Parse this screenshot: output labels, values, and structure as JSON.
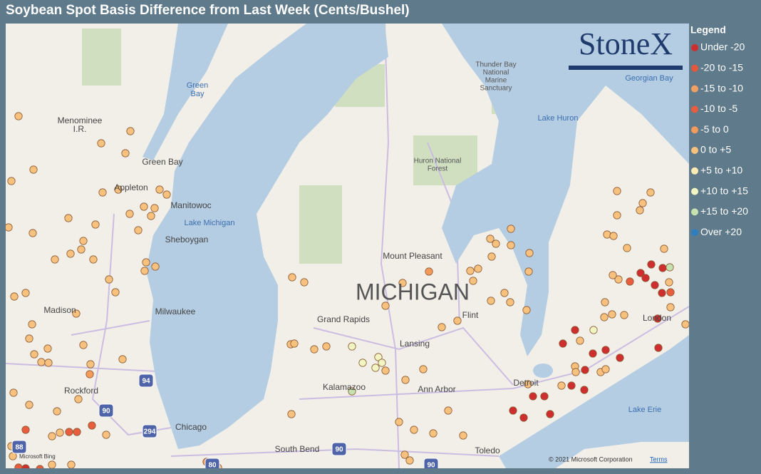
{
  "header": {
    "title": "Soybean Spot Basis Difference from Last Week (Cents/Bushel)"
  },
  "legend": {
    "title": "Legend",
    "items": [
      {
        "label": "Under -20",
        "color": "#cf2e2e"
      },
      {
        "label": "-20 to -15",
        "color": "#e3583a"
      },
      {
        "label": "-15 to -10",
        "color": "#f0a062"
      },
      {
        "label": "-10 to -5",
        "color": "#e85d3e"
      },
      {
        "label": "-5 to 0",
        "color": "#f49a5a"
      },
      {
        "label": "0 to +5",
        "color": "#f8c27e"
      },
      {
        "label": "+5 to +10",
        "color": "#fcebb2"
      },
      {
        "label": "+10 to +15",
        "color": "#f2f6c2"
      },
      {
        "label": "+15 to +20",
        "color": "#c6e2ae"
      },
      {
        "label": "Over +20",
        "color": "#2f7fbf"
      }
    ]
  },
  "brand": {
    "logo": "StoneX"
  },
  "map": {
    "labels": [
      {
        "text": [
          "Green",
          "Bay"
        ]
      },
      {
        "text": [
          "Menominee",
          "I.R."
        ]
      },
      {
        "text": [
          "Green Bay"
        ]
      },
      {
        "text": [
          "Appleton"
        ]
      },
      {
        "text": [
          "Manitowoc"
        ]
      },
      {
        "text": [
          "Lake Michigan"
        ]
      },
      {
        "text": [
          "Sheboygan"
        ]
      },
      {
        "text": [
          "Madison"
        ]
      },
      {
        "text": [
          "Milwaukee"
        ]
      },
      {
        "text": [
          "Rockford"
        ]
      },
      {
        "text": [
          "Chicago"
        ]
      },
      {
        "text": [
          "Grand Rapids"
        ]
      },
      {
        "text": [
          "MICHIGAN"
        ]
      },
      {
        "text": [
          "Mount Pleasant"
        ]
      },
      {
        "text": [
          "Flint"
        ]
      },
      {
        "text": [
          "Lansing"
        ]
      },
      {
        "text": [
          "Kalamazoo"
        ]
      },
      {
        "text": [
          "Ann Arbor"
        ]
      },
      {
        "text": [
          "Detroit"
        ]
      },
      {
        "text": [
          "South Bend"
        ]
      },
      {
        "text": [
          "Toledo"
        ]
      },
      {
        "text": [
          "London"
        ]
      },
      {
        "text": [
          "Lake Erie"
        ]
      },
      {
        "text": [
          "Lake Huron"
        ]
      },
      {
        "text": [
          "Georgian Bay"
        ]
      },
      {
        "text": [
          "Thunder Bay",
          "National",
          "Marine",
          "Sanctuary"
        ]
      },
      {
        "text": [
          "Huron National",
          "Forest"
        ]
      }
    ],
    "shields": [
      "94",
      "90",
      "294",
      "88",
      "80",
      "90",
      "90"
    ],
    "copyright": "© 2021 Microsoft Corporation",
    "terms": "Terms",
    "provider": "Microsoft Bing"
  }
}
